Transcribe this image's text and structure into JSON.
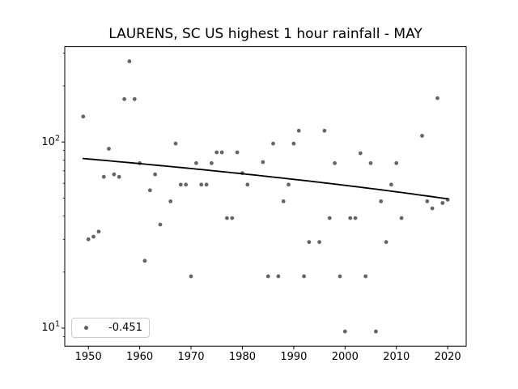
{
  "title": "LAURENS, SC US highest 1 hour rainfall - MAY",
  "colors": {
    "marker": "#4a4a4a",
    "marker_opacity": 0.85,
    "trend_line": "#000000",
    "axis": "#000000",
    "legend_border": "#cccccc",
    "background": "#ffffff"
  },
  "chart_data": {
    "type": "scatter",
    "title": "LAURENS, SC US highest 1 hour rainfall - MAY",
    "xlabel": "",
    "ylabel": "",
    "yscale": "log",
    "grid": false,
    "xlim": [
      1945.4,
      2023.6
    ],
    "ylim": [
      8.0,
      325
    ],
    "xticks": [
      1950,
      1960,
      1970,
      1980,
      1990,
      2000,
      2010,
      2020
    ],
    "yticks_major": [
      {
        "base": "10",
        "exp": "2",
        "value": 100
      },
      {
        "base": "10",
        "exp": "1",
        "value": 10
      }
    ],
    "yticks_minor": [
      9,
      20,
      30,
      40,
      50,
      60,
      70,
      80,
      90,
      200,
      300
    ],
    "legend": {
      "label": "-0.451",
      "position": "lower left"
    },
    "trend": {
      "label": "-0.451",
      "slope_per_year": -0.451,
      "x_start": 1949,
      "v_start": 81.5,
      "x_end": 2020,
      "v_end": 49.5
    },
    "points": [
      [
        1949,
        137
      ],
      [
        1950,
        30
      ],
      [
        1951,
        31
      ],
      [
        1952,
        33
      ],
      [
        1953,
        65
      ],
      [
        1954,
        92
      ],
      [
        1955,
        67
      ],
      [
        1956,
        65
      ],
      [
        1957,
        170
      ],
      [
        1958,
        271
      ],
      [
        1959,
        170
      ],
      [
        1960,
        77
      ],
      [
        1961,
        23
      ],
      [
        1962,
        55
      ],
      [
        1963,
        67
      ],
      [
        1964,
        36
      ],
      [
        1966,
        48
      ],
      [
        1967,
        98
      ],
      [
        1968,
        59
      ],
      [
        1969,
        59
      ],
      [
        1970,
        19
      ],
      [
        1971,
        77
      ],
      [
        1972,
        59
      ],
      [
        1973,
        59
      ],
      [
        1974,
        77
      ],
      [
        1975,
        88
      ],
      [
        1976,
        88
      ],
      [
        1977,
        39
      ],
      [
        1978,
        39
      ],
      [
        1979,
        88
      ],
      [
        1980,
        68
      ],
      [
        1981,
        59
      ],
      [
        1984,
        78
      ],
      [
        1985,
        19
      ],
      [
        1986,
        98
      ],
      [
        1987,
        19
      ],
      [
        1988,
        48
      ],
      [
        1989,
        59
      ],
      [
        1990,
        98
      ],
      [
        1991,
        115
      ],
      [
        1992,
        19
      ],
      [
        1993,
        29
      ],
      [
        1995,
        29
      ],
      [
        1996,
        115
      ],
      [
        1997,
        39
      ],
      [
        1998,
        77
      ],
      [
        1999,
        19
      ],
      [
        2000,
        9.6
      ],
      [
        2001,
        39
      ],
      [
        2002,
        39
      ],
      [
        2003,
        87
      ],
      [
        2004,
        19
      ],
      [
        2005,
        77
      ],
      [
        2006,
        9.6
      ],
      [
        2007,
        48
      ],
      [
        2008,
        29
      ],
      [
        2009,
        59
      ],
      [
        2010,
        77
      ],
      [
        2011,
        39
      ],
      [
        2015,
        108
      ],
      [
        2016,
        48
      ],
      [
        2017,
        44
      ],
      [
        2018,
        172
      ],
      [
        2019,
        47
      ],
      [
        2020,
        49
      ]
    ]
  }
}
